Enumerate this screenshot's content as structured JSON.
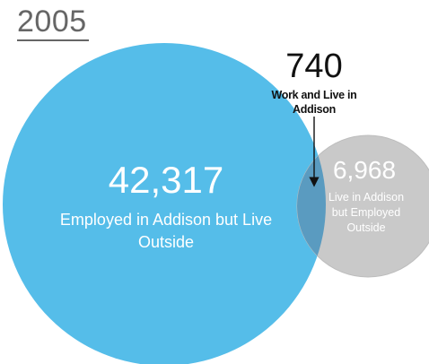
{
  "title": "2005",
  "overlap": {
    "count": "740",
    "label": "Work and Live in Addison"
  },
  "employed_outside": {
    "count": "42,317",
    "label": "Employed in Addison but Live Outside"
  },
  "live_outside": {
    "count": "6,968",
    "label": "Live in Addison but Employed Outside"
  },
  "colors": {
    "big_circle": "#55bde9",
    "small_circle": "#c9c9c9",
    "overlap": "#5a9bc0",
    "title": "#666666"
  }
}
